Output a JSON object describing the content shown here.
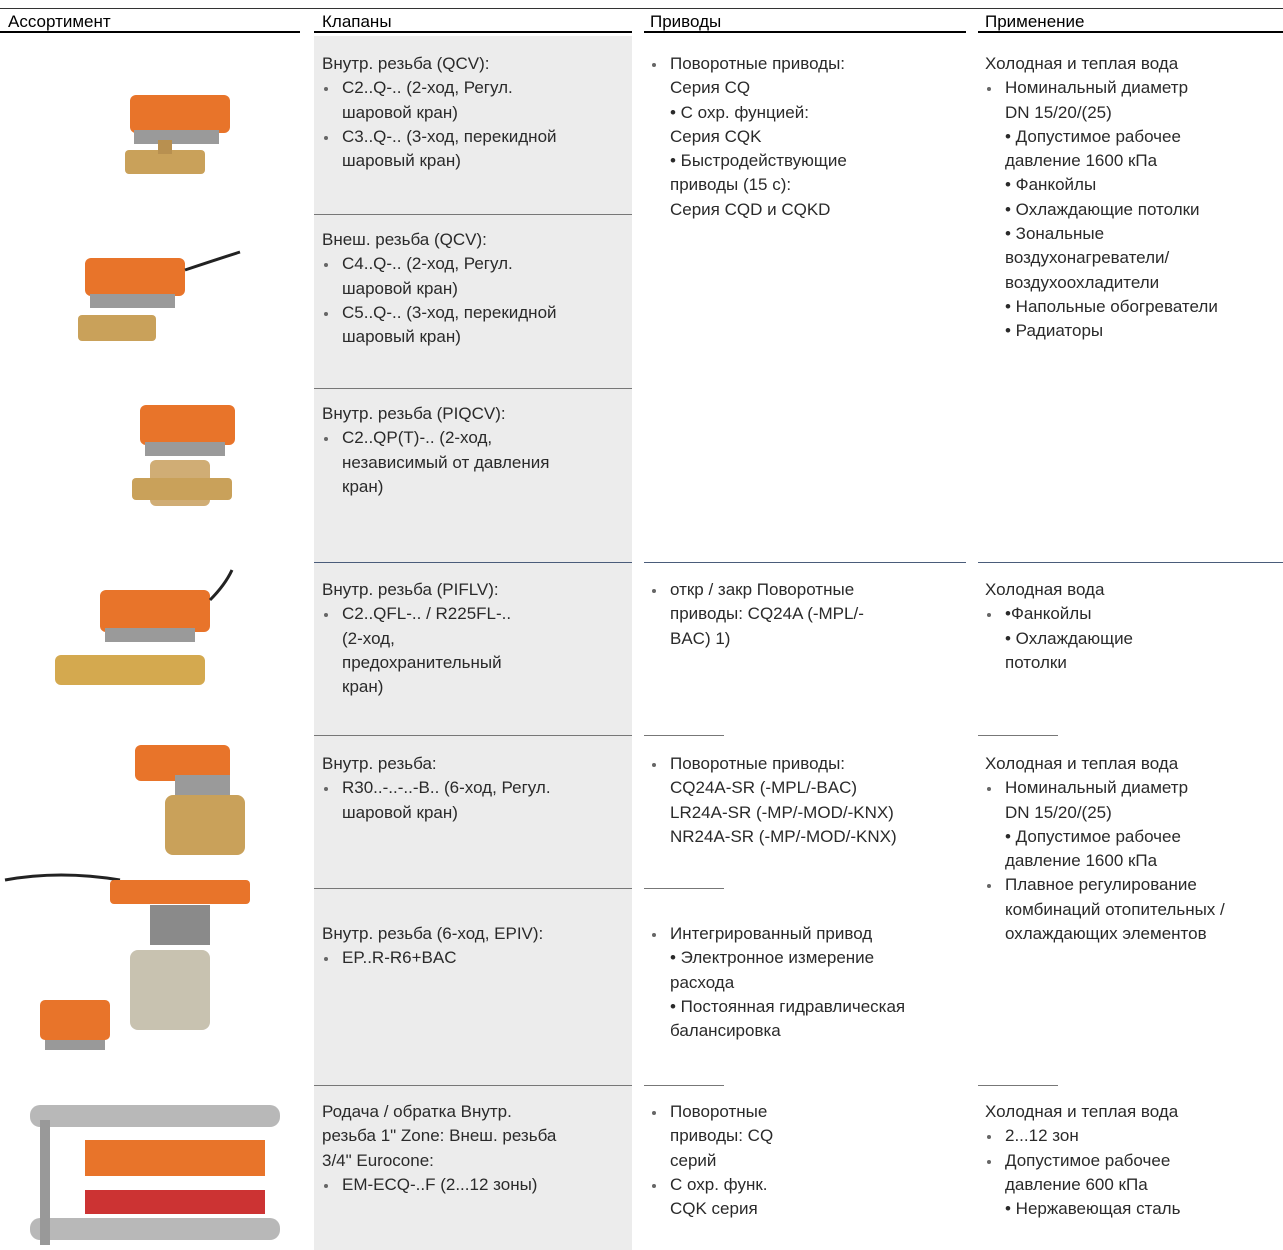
{
  "columns": [
    {
      "header": "Ассортимент"
    },
    {
      "header": "Клапаны",
      "cells": [
        {
          "paragraphs": [
            {
              "bullet": false,
              "lines": [
                "Внутр. резьба (QCV):"
              ]
            },
            {
              "bullet": true,
              "lines": [
                "C2..Q-.. (2-ход, Регул.",
                "шаровой кран)"
              ]
            },
            {
              "bullet": true,
              "lines": [
                "C3..Q-.. (3-ход, перекидной",
                "шаровый кран)"
              ]
            }
          ]
        },
        {
          "paragraphs": [
            {
              "bullet": false,
              "lines": [
                "Внеш. резьба (QCV):"
              ]
            },
            {
              "bullet": true,
              "lines": [
                "C4..Q-.. (2-ход, Регул.",
                "шаровой кран)"
              ]
            },
            {
              "bullet": true,
              "lines": [
                "C5..Q-.. (3-ход, перекидной",
                "шаровый кран)"
              ]
            }
          ]
        },
        {
          "paragraphs": [
            {
              "bullet": false,
              "lines": [
                "Внутр. резьба (PIQCV):"
              ]
            },
            {
              "bullet": true,
              "lines": [
                "C2..QP(T)-.. (2-ход,",
                "независимый от давления",
                "кран)"
              ]
            }
          ]
        },
        {
          "paragraphs": [
            {
              "bullet": false,
              "lines": [
                "Внутр. резьба (PIFLV):"
              ]
            },
            {
              "bullet": true,
              "lines": [
                "C2..QFL-.. / R225FL-..",
                "(2-ход,",
                "предохранительный",
                "кран)"
              ]
            }
          ]
        },
        {
          "paragraphs": [
            {
              "bullet": false,
              "lines": [
                "Внутр. резьба:"
              ]
            },
            {
              "bullet": true,
              "lines": [
                "R30..-..-..-B.. (6-ход, Регул.",
                "шаровой кран)"
              ]
            }
          ]
        },
        {
          "paragraphs": [
            {
              "bullet": false,
              "lines": [
                "Внутр. резьба (6-ход, EPIV):"
              ]
            },
            {
              "bullet": true,
              "lines": [
                "EP..R-R6+BAC"
              ]
            }
          ]
        },
        {
          "paragraphs": [
            {
              "bullet": false,
              "lines": [
                "Родача / обратка Внутр.",
                "резьба 1\" Zone: Внеш. резьба",
                "3/4\" Eurocone:"
              ]
            },
            {
              "bullet": true,
              "lines": [
                "EM-ECQ-..F (2...12 зоны)"
              ]
            }
          ]
        }
      ]
    },
    {
      "header": "Приводы",
      "cells": [
        {
          "paragraphs": [
            {
              "bullet": true,
              "lines": [
                "Поворотные приводы:",
                "Серия CQ",
                "• С охр. фунцией:",
                "Серия CQK",
                "• Быстродействующие",
                "приводы (15 с):",
                "Серия CQD и CQKD"
              ]
            }
          ]
        },
        {
          "paragraphs": [
            {
              "bullet": true,
              "lines": [
                "откр / закр Поворотные",
                "приводы: CQ24A (-MPL/-",
                "BAC) 1)"
              ]
            }
          ]
        },
        {
          "paragraphs": [
            {
              "bullet": true,
              "lines": [
                "Поворотные приводы:",
                "CQ24A-SR (-MPL/-BAC)",
                "LR24A-SR (-MP/-MOD/-KNX)",
                "NR24A-SR (-MP/-MOD/-KNX)"
              ]
            }
          ]
        },
        {
          "paragraphs": [
            {
              "bullet": true,
              "lines": [
                "Интегрированный привод",
                "• Электронное измерение",
                "расхода",
                "• Постоянная гидравлическая",
                "балансировка"
              ]
            }
          ]
        },
        {
          "paragraphs": [
            {
              "bullet": true,
              "lines": [
                "Поворотные",
                "приводы: CQ",
                "серий"
              ]
            },
            {
              "bullet": true,
              "lines": [
                "С охр. функ.",
                "CQK серия"
              ]
            }
          ]
        }
      ]
    },
    {
      "header": "Применение",
      "cells": [
        {
          "paragraphs": [
            {
              "bullet": false,
              "lines": [
                "Холодная и теплая вода"
              ]
            },
            {
              "bullet": true,
              "lines": [
                "Номинальный диаметр",
                "DN 15/20/(25)",
                "• Допустимое рабочее",
                "давление 1600 кПа",
                "• Фанкойлы",
                "• Охлаждающие потолки",
                "• Зональные",
                "воздухонагреватели/",
                "воздухоохладители",
                "• Напольные обогреватели",
                "• Радиаторы"
              ]
            }
          ]
        },
        {
          "paragraphs": [
            {
              "bullet": false,
              "lines": [
                "Холодная вода"
              ]
            },
            {
              "bullet": true,
              "lines": [
                "•Фанкойлы",
                "• Охлаждающие",
                "потолки"
              ]
            }
          ]
        },
        {
          "paragraphs": [
            {
              "bullet": false,
              "lines": [
                "Холодная и теплая вода"
              ]
            },
            {
              "bullet": true,
              "lines": [
                "Номинальный диаметр",
                "DN 15/20/(25)",
                "• Допустимое рабочее",
                "давление 1600 кПа"
              ]
            },
            {
              "bullet": true,
              "lines": [
                "Плавное регулирование",
                "комбинаций отопительных /",
                "охлаждающих элементов"
              ]
            }
          ]
        },
        {
          "paragraphs": [
            {
              "bullet": false,
              "lines": [
                "Холодная и теплая вода"
              ]
            },
            {
              "bullet": true,
              "lines": [
                "2...12 зон"
              ]
            },
            {
              "bullet": true,
              "lines": [
                "Допустимое рабочее",
                "давление 600 кПа",
                "• Нержавеющая сталь"
              ]
            }
          ]
        }
      ]
    }
  ]
}
